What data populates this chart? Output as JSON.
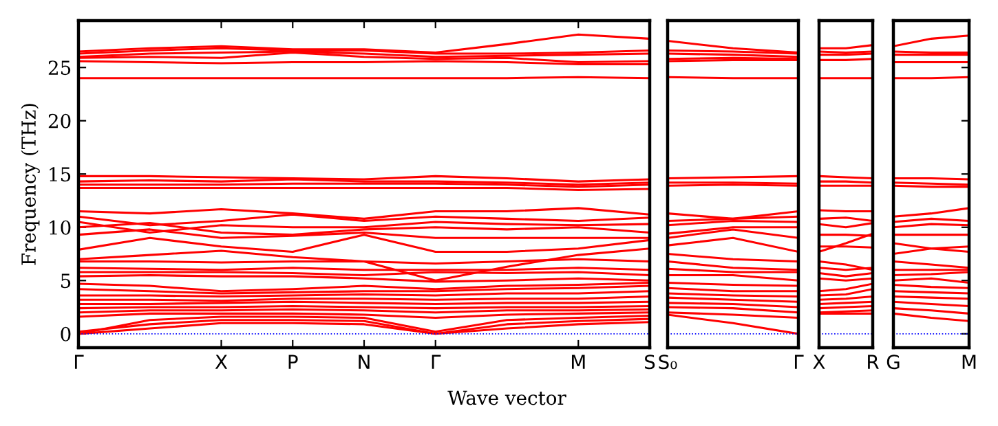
{
  "chart_data": [
    {
      "type": "line",
      "ylabel": "Frequency (THz)",
      "xlabel": "Wave vector",
      "ylim": [
        -1.3,
        29.4
      ],
      "yticks": [
        0,
        5,
        10,
        15,
        20,
        25
      ],
      "categories": [
        "Γ",
        null,
        "X",
        "P",
        "N",
        "Γ",
        null,
        "M",
        "S"
      ],
      "grid": false,
      "legend": false,
      "line_style": "solid",
      "marker": "none",
      "ref_lines": [
        {
          "axis": "y",
          "value": 0,
          "color": "#0000ff",
          "line_style": "dotted"
        }
      ],
      "series": [
        {
          "color": "#ff0000",
          "values": [
            26.5,
            26.8,
            27.0,
            26.7,
            26.7,
            26.4,
            27.2,
            28.1,
            27.7
          ]
        },
        {
          "color": "#ff0000",
          "values": [
            26.3,
            26.6,
            26.8,
            26.6,
            26.6,
            26.3,
            26.3,
            26.4,
            26.6
          ]
        },
        {
          "color": "#ff0000",
          "values": [
            26.0,
            26.3,
            26.4,
            26.5,
            26.3,
            26.0,
            26.1,
            26.2,
            26.3
          ]
        },
        {
          "color": "#ff0000",
          "values": [
            25.9,
            26.0,
            25.9,
            26.4,
            26.0,
            25.8,
            25.9,
            25.5,
            25.6
          ]
        },
        {
          "color": "#ff0000",
          "values": [
            25.6,
            25.5,
            25.4,
            25.5,
            25.5,
            25.6,
            25.5,
            25.3,
            25.3
          ]
        },
        {
          "color": "#ff0000",
          "values": [
            24.0,
            24.0,
            24.0,
            24.0,
            24.0,
            24.0,
            24.0,
            24.1,
            24.0
          ]
        },
        {
          "color": "#ff0000",
          "values": [
            14.8,
            14.8,
            14.7,
            14.6,
            14.5,
            14.8,
            14.6,
            14.3,
            14.5
          ]
        },
        {
          "color": "#ff0000",
          "values": [
            14.3,
            14.4,
            14.3,
            14.5,
            14.3,
            14.3,
            14.2,
            14.0,
            14.2
          ]
        },
        {
          "color": "#ff0000",
          "values": [
            14.0,
            14.0,
            14.0,
            14.1,
            14.1,
            14.1,
            14.0,
            13.8,
            14.0
          ]
        },
        {
          "color": "#ff0000",
          "values": [
            13.7,
            13.7,
            13.7,
            13.7,
            13.7,
            13.7,
            13.7,
            13.5,
            13.6
          ]
        },
        {
          "color": "#ff0000",
          "values": [
            11.5,
            11.3,
            11.7,
            11.3,
            10.8,
            11.5,
            11.5,
            11.8,
            11.2
          ]
        },
        {
          "color": "#ff0000",
          "values": [
            11.0,
            10.2,
            10.6,
            11.2,
            10.6,
            11.0,
            10.8,
            10.6,
            10.9
          ]
        },
        {
          "color": "#ff0000",
          "values": [
            10.5,
            9.5,
            10.2,
            10.0,
            10.0,
            10.5,
            10.3,
            10.2,
            10.3
          ]
        },
        {
          "color": "#ff0000",
          "values": [
            10.0,
            10.4,
            9.5,
            9.3,
            9.8,
            10.0,
            9.8,
            10.0,
            9.5
          ]
        },
        {
          "color": "#ff0000",
          "values": [
            9.3,
            9.8,
            9.0,
            9.2,
            9.5,
            9.0,
            9.0,
            9.0,
            9.0
          ]
        },
        {
          "color": "#ff0000",
          "values": [
            7.9,
            9.0,
            8.2,
            7.7,
            9.3,
            7.7,
            7.7,
            8.0,
            8.8
          ]
        },
        {
          "color": "#ff0000",
          "values": [
            7.0,
            7.4,
            7.8,
            7.2,
            6.8,
            5.0,
            6.3,
            7.4,
            8.0
          ]
        },
        {
          "color": "#ff0000",
          "values": [
            6.8,
            6.8,
            6.7,
            6.8,
            6.8,
            6.6,
            6.8,
            7.0,
            6.8
          ]
        },
        {
          "color": "#ff0000",
          "values": [
            6.2,
            6.1,
            6.0,
            6.2,
            6.0,
            6.0,
            6.0,
            6.2,
            6.0
          ]
        },
        {
          "color": "#ff0000",
          "values": [
            5.8,
            5.8,
            5.8,
            5.7,
            5.5,
            5.8,
            5.7,
            5.8,
            5.5
          ]
        },
        {
          "color": "#ff0000",
          "values": [
            5.4,
            5.5,
            5.4,
            5.4,
            5.2,
            4.9,
            5.0,
            5.2,
            5.0
          ]
        },
        {
          "color": "#ff0000",
          "values": [
            4.7,
            4.5,
            4.0,
            4.2,
            4.5,
            4.2,
            4.5,
            4.6,
            4.8
          ]
        },
        {
          "color": "#ff0000",
          "values": [
            4.2,
            4.0,
            3.8,
            3.9,
            4.0,
            4.0,
            4.2,
            4.3,
            4.5
          ]
        },
        {
          "color": "#ff0000",
          "values": [
            3.6,
            3.6,
            3.5,
            3.6,
            3.7,
            3.6,
            3.8,
            3.8,
            4.0
          ]
        },
        {
          "color": "#ff0000",
          "values": [
            3.2,
            3.2,
            3.1,
            3.3,
            3.3,
            3.2,
            3.3,
            3.3,
            3.5
          ]
        },
        {
          "color": "#ff0000",
          "values": [
            2.8,
            2.8,
            2.9,
            3.0,
            2.9,
            2.8,
            2.9,
            2.9,
            3.0
          ]
        },
        {
          "color": "#ff0000",
          "values": [
            2.4,
            2.5,
            2.5,
            2.6,
            2.5,
            2.4,
            2.5,
            2.5,
            2.6
          ]
        },
        {
          "color": "#ff0000",
          "values": [
            2.0,
            2.2,
            2.2,
            2.3,
            2.2,
            2.0,
            2.2,
            2.2,
            2.3
          ]
        },
        {
          "color": "#ff0000",
          "values": [
            1.6,
            1.9,
            1.9,
            1.9,
            1.8,
            1.5,
            1.8,
            1.9,
            2.0
          ]
        },
        {
          "color": "#ff0000",
          "values": [
            0,
            1.3,
            1.6,
            1.6,
            1.5,
            0.2,
            1.3,
            1.5,
            1.7
          ]
        },
        {
          "color": "#ff0000",
          "values": [
            0.2,
            0.9,
            1.3,
            1.3,
            1.2,
            0,
            0.9,
            1.2,
            1.4
          ]
        },
        {
          "color": "#ff0000",
          "values": [
            0,
            0.5,
            1.0,
            1.0,
            0.9,
            0,
            0.5,
            0.9,
            1.1
          ]
        }
      ]
    },
    {
      "type": "line",
      "ylim": [
        -1.3,
        29.4
      ],
      "yticks": [
        0,
        5,
        10,
        15,
        20,
        25
      ],
      "tick_labels": "x",
      "categories": [
        "S₀",
        null,
        "Γ"
      ],
      "grid": false,
      "legend": false,
      "line_style": "solid",
      "marker": "none",
      "ref_lines": [
        {
          "axis": "y",
          "value": 0,
          "color": "#0000ff",
          "line_style": "dotted"
        }
      ],
      "series": [
        {
          "color": "#ff0000",
          "values": [
            27.5,
            26.8,
            26.4
          ]
        },
        {
          "color": "#ff0000",
          "values": [
            26.6,
            26.5,
            26.3
          ]
        },
        {
          "color": "#ff0000",
          "values": [
            26.3,
            26.2,
            26.0
          ]
        },
        {
          "color": "#ff0000",
          "values": [
            25.8,
            25.9,
            25.8
          ]
        },
        {
          "color": "#ff0000",
          "values": [
            25.6,
            25.7,
            25.7
          ]
        },
        {
          "color": "#ff0000",
          "values": [
            24.1,
            24.0,
            24.0
          ]
        },
        {
          "color": "#ff0000",
          "values": [
            14.6,
            14.7,
            14.8
          ]
        },
        {
          "color": "#ff0000",
          "values": [
            14.2,
            14.2,
            14.1
          ]
        },
        {
          "color": "#ff0000",
          "values": [
            13.9,
            14.0,
            13.9
          ]
        },
        {
          "color": "#ff0000",
          "values": [
            11.3,
            10.8,
            11.5
          ]
        },
        {
          "color": "#ff0000",
          "values": [
            10.6,
            10.8,
            11.0
          ]
        },
        {
          "color": "#ff0000",
          "values": [
            10.2,
            10.6,
            10.5
          ]
        },
        {
          "color": "#ff0000",
          "values": [
            9.4,
            10.0,
            10.0
          ]
        },
        {
          "color": "#ff0000",
          "values": [
            9.0,
            9.8,
            9.0
          ]
        },
        {
          "color": "#ff0000",
          "values": [
            8.3,
            9.0,
            7.7
          ]
        },
        {
          "color": "#ff0000",
          "values": [
            7.5,
            7.0,
            6.8
          ]
        },
        {
          "color": "#ff0000",
          "values": [
            6.8,
            6.2,
            6.0
          ]
        },
        {
          "color": "#ff0000",
          "values": [
            6.1,
            5.8,
            5.8
          ]
        },
        {
          "color": "#ff0000",
          "values": [
            5.5,
            5.5,
            5.0
          ]
        },
        {
          "color": "#ff0000",
          "values": [
            4.8,
            4.6,
            4.5
          ]
        },
        {
          "color": "#ff0000",
          "values": [
            4.3,
            4.0,
            4.0
          ]
        },
        {
          "color": "#ff0000",
          "values": [
            3.8,
            3.6,
            3.5
          ]
        },
        {
          "color": "#ff0000",
          "values": [
            3.4,
            3.2,
            3.0
          ]
        },
        {
          "color": "#ff0000",
          "values": [
            2.9,
            2.8,
            2.5
          ]
        },
        {
          "color": "#ff0000",
          "values": [
            2.5,
            2.4,
            2.0
          ]
        },
        {
          "color": "#ff0000",
          "values": [
            2.0,
            1.8,
            1.5
          ]
        },
        {
          "color": "#ff0000",
          "values": [
            1.8,
            1.0,
            0.0
          ]
        }
      ]
    },
    {
      "type": "line",
      "ylim": [
        -1.3,
        29.4
      ],
      "yticks": [
        0,
        5,
        10,
        15,
        20,
        25
      ],
      "tick_labels": "x",
      "categories": [
        "X",
        null,
        "R"
      ],
      "grid": false,
      "legend": false,
      "line_style": "solid",
      "marker": "none",
      "ref_lines": [
        {
          "axis": "y",
          "value": 0,
          "color": "#0000ff",
          "line_style": "dotted"
        }
      ],
      "series": [
        {
          "color": "#ff0000",
          "values": [
            26.8,
            26.8,
            27.1
          ]
        },
        {
          "color": "#ff0000",
          "values": [
            26.5,
            26.4,
            26.5
          ]
        },
        {
          "color": "#ff0000",
          "values": [
            26.2,
            26.2,
            26.3
          ]
        },
        {
          "color": "#ff0000",
          "values": [
            25.7,
            25.7,
            25.8
          ]
        },
        {
          "color": "#ff0000",
          "values": [
            24.0,
            24.0,
            24.0
          ]
        },
        {
          "color": "#ff0000",
          "values": [
            14.8,
            14.7,
            14.6
          ]
        },
        {
          "color": "#ff0000",
          "values": [
            14.3,
            14.3,
            14.2
          ]
        },
        {
          "color": "#ff0000",
          "values": [
            13.9,
            13.9,
            13.9
          ]
        },
        {
          "color": "#ff0000",
          "values": [
            11.6,
            11.5,
            11.5
          ]
        },
        {
          "color": "#ff0000",
          "values": [
            10.8,
            10.9,
            10.6
          ]
        },
        {
          "color": "#ff0000",
          "values": [
            10.3,
            10.0,
            10.4
          ]
        },
        {
          "color": "#ff0000",
          "values": [
            9.3,
            9.3,
            9.2
          ]
        },
        {
          "color": "#ff0000",
          "values": [
            7.7,
            8.5,
            9.4
          ]
        },
        {
          "color": "#ff0000",
          "values": [
            8.2,
            8.2,
            8.1
          ]
        },
        {
          "color": "#ff0000",
          "values": [
            6.8,
            6.5,
            6.0
          ]
        },
        {
          "color": "#ff0000",
          "values": [
            6.2,
            6.0,
            6.2
          ]
        },
        {
          "color": "#ff0000",
          "values": [
            5.7,
            5.4,
            5.7
          ]
        },
        {
          "color": "#ff0000",
          "values": [
            5.2,
            5.0,
            5.2
          ]
        },
        {
          "color": "#ff0000",
          "values": [
            4.0,
            4.2,
            4.7
          ]
        },
        {
          "color": "#ff0000",
          "values": [
            3.6,
            3.7,
            4.2
          ]
        },
        {
          "color": "#ff0000",
          "values": [
            3.2,
            3.3,
            3.5
          ]
        },
        {
          "color": "#ff0000",
          "values": [
            2.8,
            2.9,
            3.0
          ]
        },
        {
          "color": "#ff0000",
          "values": [
            2.4,
            2.5,
            2.6
          ]
        },
        {
          "color": "#ff0000",
          "values": [
            2.0,
            2.1,
            2.2
          ]
        },
        {
          "color": "#ff0000",
          "values": [
            1.9,
            1.9,
            1.9
          ]
        }
      ]
    },
    {
      "type": "line",
      "ylim": [
        -1.3,
        29.4
      ],
      "yticks": [
        0,
        5,
        10,
        15,
        20,
        25
      ],
      "tick_labels": "x",
      "categories": [
        "G",
        null,
        "M"
      ],
      "grid": false,
      "legend": false,
      "line_style": "solid",
      "marker": "none",
      "ref_lines": [
        {
          "axis": "y",
          "value": 0,
          "color": "#0000ff",
          "line_style": "dotted"
        }
      ],
      "series": [
        {
          "color": "#ff0000",
          "values": [
            27.0,
            27.7,
            28.0
          ]
        },
        {
          "color": "#ff0000",
          "values": [
            26.5,
            26.4,
            26.4
          ]
        },
        {
          "color": "#ff0000",
          "values": [
            26.2,
            26.2,
            26.2
          ]
        },
        {
          "color": "#ff0000",
          "values": [
            25.5,
            25.5,
            25.5
          ]
        },
        {
          "color": "#ff0000",
          "values": [
            24.0,
            24.0,
            24.1
          ]
        },
        {
          "color": "#ff0000",
          "values": [
            14.6,
            14.6,
            14.5
          ]
        },
        {
          "color": "#ff0000",
          "values": [
            14.2,
            14.1,
            14.0
          ]
        },
        {
          "color": "#ff0000",
          "values": [
            13.9,
            13.8,
            13.8
          ]
        },
        {
          "color": "#ff0000",
          "values": [
            11.0,
            11.3,
            11.8
          ]
        },
        {
          "color": "#ff0000",
          "values": [
            10.5,
            10.8,
            10.6
          ]
        },
        {
          "color": "#ff0000",
          "values": [
            10.0,
            10.3,
            10.2
          ]
        },
        {
          "color": "#ff0000",
          "values": [
            9.3,
            9.3,
            9.3
          ]
        },
        {
          "color": "#ff0000",
          "values": [
            8.5,
            8.0,
            7.7
          ]
        },
        {
          "color": "#ff0000",
          "values": [
            7.5,
            8.0,
            8.2
          ]
        },
        {
          "color": "#ff0000",
          "values": [
            6.8,
            6.5,
            6.2
          ]
        },
        {
          "color": "#ff0000",
          "values": [
            6.0,
            6.0,
            6.0
          ]
        },
        {
          "color": "#ff0000",
          "values": [
            5.5,
            5.6,
            5.8
          ]
        },
        {
          "color": "#ff0000",
          "values": [
            5.0,
            5.2,
            4.8
          ]
        },
        {
          "color": "#ff0000",
          "values": [
            4.6,
            4.4,
            4.3
          ]
        },
        {
          "color": "#ff0000",
          "values": [
            4.0,
            3.9,
            3.8
          ]
        },
        {
          "color": "#ff0000",
          "values": [
            3.5,
            3.4,
            3.3
          ]
        },
        {
          "color": "#ff0000",
          "values": [
            3.0,
            2.8,
            2.6
          ]
        },
        {
          "color": "#ff0000",
          "values": [
            2.4,
            2.2,
            1.9
          ]
        },
        {
          "color": "#ff0000",
          "values": [
            1.9,
            1.5,
            1.2
          ]
        }
      ]
    }
  ]
}
